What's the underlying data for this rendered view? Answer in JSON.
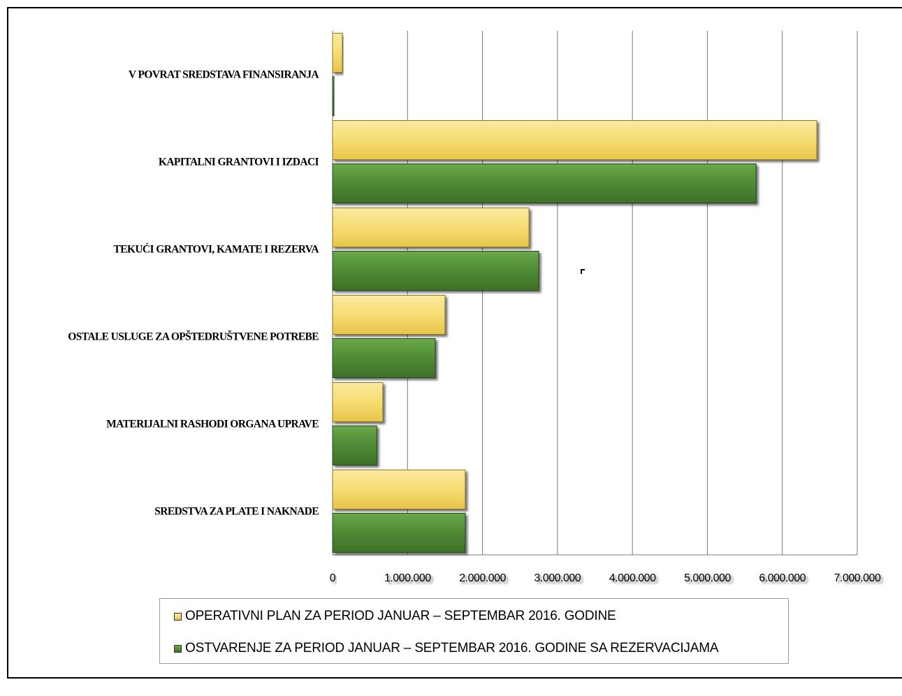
{
  "chart_data": {
    "type": "bar",
    "orientation": "horizontal",
    "categories": [
      "V POVRAT SREDSTAVA FINANSIRANJA",
      "KAPITALNI GRANTOVI I IZDACI",
      "TEKUĆI GRANTOVI,  KAMATE I  REZERVA",
      "OSTALE USLUGE ZA OPŠTEDRUŠTVENE POTREBE",
      "MATERIJALNI RASHODI ORGANA UPRAVE",
      "SREDSTVA ZA PLATE I NAKNADE"
    ],
    "series": [
      {
        "name": "OPERATIVNI PLAN ZA PERIOD JANUAR – SEPTEMBAR 2016. GODINE",
        "color": "#f4d35e",
        "values": [
          130000,
          6460000,
          2620000,
          1500000,
          670000,
          1770000
        ]
      },
      {
        "name": "OSTVARENJE ZA PERIOD JANUAR – SEPTEMBAR 2016. GODINE SA REZERVACIJAMA",
        "color": "#4e8a34",
        "values": [
          15000,
          5650000,
          2750000,
          1370000,
          590000,
          1770000
        ]
      }
    ],
    "xlim": [
      0,
      7000000
    ],
    "ticks": [
      "0",
      "1.000.000",
      "2.000.000",
      "3.000.000",
      "4.000.000",
      "5.000.000",
      "6.000.000",
      "7.000.000"
    ],
    "grid": true,
    "legend_position": "bottom",
    "title": "",
    "xlabel": "",
    "ylabel": ""
  }
}
